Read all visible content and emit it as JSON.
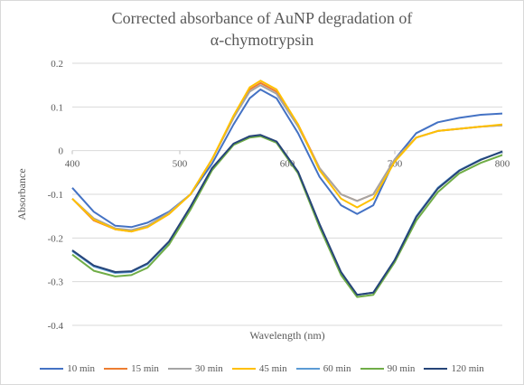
{
  "chart_data": {
    "type": "line",
    "title": "Corrected absorbance of AuNP degradation of",
    "title_line2": "α-chymotrypsin",
    "xlabel": "Wavelength (nm)",
    "ylabel": "Absorbance",
    "xlim": [
      400,
      800
    ],
    "ylim": [
      -0.4,
      0.2
    ],
    "xticks": [
      "400",
      "500",
      "600",
      "700",
      "800"
    ],
    "yticks": [
      "0.2",
      "0.1",
      "0",
      "-0.1",
      "-0.2",
      "-0.3",
      "-0.4"
    ],
    "grid": true,
    "legend_position": "bottom",
    "x": [
      400,
      420,
      440,
      455,
      470,
      490,
      510,
      530,
      550,
      565,
      575,
      590,
      610,
      630,
      650,
      665,
      680,
      700,
      720,
      740,
      760,
      780,
      800
    ],
    "series": [
      {
        "name": "10 min",
        "color": "#4472c4",
        "values": [
          -0.085,
          -0.14,
          -0.172,
          -0.175,
          -0.165,
          -0.14,
          -0.1,
          -0.03,
          0.06,
          0.12,
          0.14,
          0.12,
          0.04,
          -0.06,
          -0.125,
          -0.145,
          -0.125,
          -0.02,
          0.04,
          0.065,
          0.075,
          0.082,
          0.085
        ]
      },
      {
        "name": "15 min",
        "color": "#ed7d31",
        "values": [
          -0.11,
          -0.16,
          -0.18,
          -0.185,
          -0.175,
          -0.145,
          -0.1,
          -0.02,
          0.075,
          0.14,
          0.155,
          0.135,
          0.06,
          -0.04,
          -0.1,
          -0.115,
          -0.1,
          -0.02,
          0.03,
          0.045,
          0.05,
          0.055,
          0.058
        ]
      },
      {
        "name": "30 min",
        "color": "#a5a5a5",
        "values": [
          -0.11,
          -0.155,
          -0.178,
          -0.182,
          -0.172,
          -0.142,
          -0.1,
          -0.02,
          0.075,
          0.135,
          0.15,
          0.13,
          0.055,
          -0.04,
          -0.1,
          -0.115,
          -0.1,
          -0.02,
          0.03,
          0.045,
          0.05,
          0.055,
          0.058
        ]
      },
      {
        "name": "45 min",
        "color": "#ffc000",
        "values": [
          -0.11,
          -0.158,
          -0.18,
          -0.185,
          -0.175,
          -0.145,
          -0.1,
          -0.02,
          0.08,
          0.145,
          0.16,
          0.14,
          0.06,
          -0.045,
          -0.11,
          -0.13,
          -0.11,
          -0.025,
          0.03,
          0.045,
          0.05,
          0.055,
          0.06
        ]
      },
      {
        "name": "60 min",
        "color": "#5b9bd5",
        "values": [
          -0.23,
          -0.265,
          -0.28,
          -0.278,
          -0.26,
          -0.21,
          -0.13,
          -0.04,
          0.015,
          0.032,
          0.035,
          0.02,
          -0.05,
          -0.17,
          -0.28,
          -0.33,
          -0.325,
          -0.25,
          -0.15,
          -0.085,
          -0.045,
          -0.02,
          -0.003
        ]
      },
      {
        "name": "90 min",
        "color": "#70ad47",
        "values": [
          -0.238,
          -0.275,
          -0.288,
          -0.285,
          -0.268,
          -0.215,
          -0.135,
          -0.045,
          0.013,
          0.03,
          0.033,
          0.018,
          -0.052,
          -0.175,
          -0.285,
          -0.335,
          -0.33,
          -0.255,
          -0.16,
          -0.095,
          -0.052,
          -0.028,
          -0.01
        ]
      },
      {
        "name": "120 min",
        "color": "#264478",
        "values": [
          -0.228,
          -0.263,
          -0.278,
          -0.276,
          -0.258,
          -0.208,
          -0.128,
          -0.04,
          0.016,
          0.033,
          0.036,
          0.021,
          -0.048,
          -0.168,
          -0.278,
          -0.33,
          -0.325,
          -0.25,
          -0.152,
          -0.087,
          -0.046,
          -0.021,
          -0.002
        ]
      }
    ]
  }
}
